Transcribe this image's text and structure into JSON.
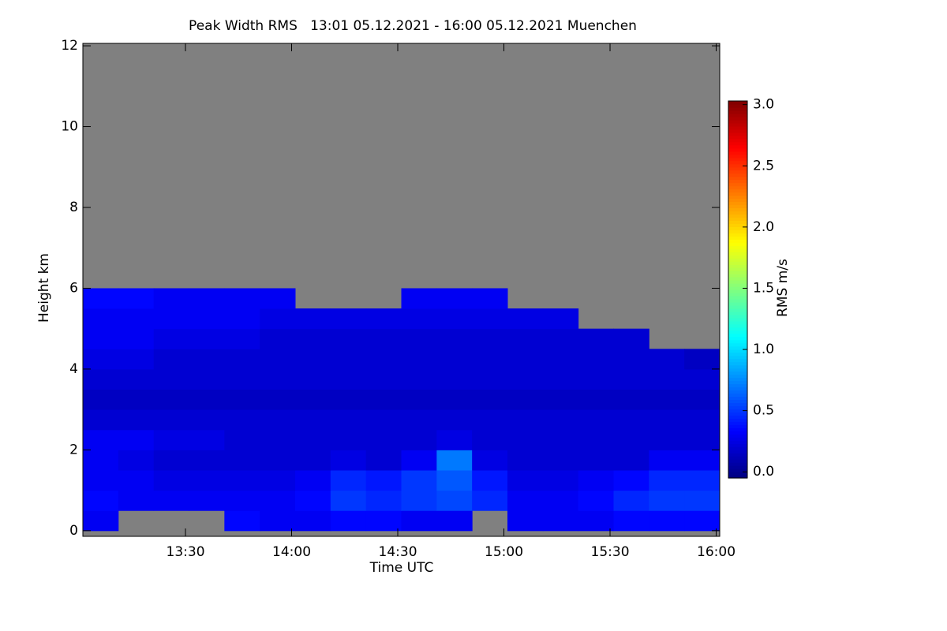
{
  "chart_data": {
    "type": "heatmap",
    "title": "Peak Width RMS   13:01 05.12.2021 - 16:00 05.12.2021 Muenchen",
    "xlabel": "Time UTC",
    "ylabel": "Height km",
    "colorbar_label": "RMS m/s",
    "colormap": "jet",
    "missing_color": "#808080",
    "xlim": [
      781,
      961
    ],
    "xticks": [
      {
        "value": 810,
        "label": "13:30"
      },
      {
        "value": 840,
        "label": "14:00"
      },
      {
        "value": 870,
        "label": "14:30"
      },
      {
        "value": 900,
        "label": "15:00"
      },
      {
        "value": 930,
        "label": "15:30"
      },
      {
        "value": 960,
        "label": "16:00"
      }
    ],
    "ylim": [
      -0.14,
      12.06
    ],
    "yticks": [
      0,
      2,
      4,
      6,
      8,
      10,
      12
    ],
    "zlim": [
      -0.05,
      3.03
    ],
    "zticks": [
      {
        "value": 0,
        "label": "0.0"
      },
      {
        "value": 0.5,
        "label": "0.5"
      },
      {
        "value": 1,
        "label": "1.0"
      },
      {
        "value": 1.5,
        "label": "1.5"
      },
      {
        "value": 2,
        "label": "2.0"
      },
      {
        "value": 2.5,
        "label": "2.5"
      },
      {
        "value": 3,
        "label": "3.0"
      }
    ],
    "x": [
      786,
      796,
      806,
      816,
      826,
      836,
      846,
      856,
      866,
      876,
      886,
      896,
      906,
      916,
      926,
      936,
      946,
      956
    ],
    "y": [
      0.25,
      0.75,
      1.25,
      1.75,
      2.25,
      2.75,
      3.25,
      3.75,
      4.25,
      4.75,
      5.25,
      5.75,
      6.25
    ],
    "z": [
      [
        0.3,
        null,
        null,
        null,
        0.35,
        0.3,
        0.3,
        0.35,
        0.35,
        0.3,
        0.3,
        null,
        0.3,
        0.3,
        0.3,
        0.35,
        0.35,
        0.35
      ],
      [
        0.35,
        0.3,
        0.3,
        0.3,
        0.3,
        0.3,
        0.35,
        0.5,
        0.45,
        0.5,
        0.55,
        0.45,
        0.3,
        0.3,
        0.35,
        0.45,
        0.5,
        0.5
      ],
      [
        0.3,
        0.3,
        0.25,
        0.25,
        0.25,
        0.25,
        0.3,
        0.45,
        0.4,
        0.5,
        0.6,
        0.4,
        0.25,
        0.25,
        0.3,
        0.35,
        0.45,
        0.45
      ],
      [
        0.3,
        0.25,
        0.2,
        0.2,
        0.2,
        0.2,
        0.2,
        0.25,
        0.2,
        0.3,
        0.7,
        0.25,
        0.2,
        0.2,
        0.2,
        0.2,
        0.3,
        0.3
      ],
      [
        0.3,
        0.3,
        0.25,
        0.25,
        0.2,
        0.2,
        0.2,
        0.2,
        0.2,
        0.2,
        0.25,
        0.2,
        0.2,
        0.2,
        0.2,
        0.2,
        0.2,
        0.2
      ],
      [
        0.2,
        0.2,
        0.2,
        0.2,
        0.2,
        0.2,
        0.2,
        0.2,
        0.2,
        0.2,
        0.2,
        0.2,
        0.2,
        0.2,
        0.2,
        0.2,
        0.2,
        0.2
      ],
      [
        0.15,
        0.15,
        0.15,
        0.15,
        0.15,
        0.15,
        0.15,
        0.15,
        0.15,
        0.15,
        0.15,
        0.15,
        0.15,
        0.15,
        0.15,
        0.15,
        0.15,
        0.15
      ],
      [
        0.2,
        0.2,
        0.2,
        0.2,
        0.2,
        0.2,
        0.2,
        0.2,
        0.2,
        0.2,
        0.2,
        0.2,
        0.2,
        0.2,
        0.2,
        0.2,
        0.2,
        0.2
      ],
      [
        0.25,
        0.25,
        0.2,
        0.2,
        0.2,
        0.2,
        0.2,
        0.2,
        0.2,
        0.2,
        0.2,
        0.2,
        0.2,
        0.2,
        0.2,
        0.2,
        0.2,
        0.15
      ],
      [
        0.3,
        0.3,
        0.25,
        0.25,
        0.25,
        0.2,
        0.2,
        0.2,
        0.2,
        0.2,
        0.2,
        0.2,
        0.2,
        0.2,
        0.2,
        0.2,
        null,
        null
      ],
      [
        0.3,
        0.3,
        0.3,
        0.3,
        0.3,
        0.25,
        0.25,
        0.25,
        0.25,
        0.25,
        0.25,
        0.25,
        0.25,
        0.25,
        null,
        null,
        null,
        null
      ],
      [
        0.35,
        0.35,
        0.3,
        0.3,
        0.3,
        0.3,
        null,
        null,
        null,
        0.3,
        0.3,
        0.3,
        null,
        null,
        null,
        null,
        null,
        null
      ],
      [
        null,
        null,
        null,
        null,
        null,
        null,
        null,
        null,
        null,
        null,
        null,
        null,
        null,
        null,
        null,
        null,
        null,
        null
      ]
    ]
  }
}
